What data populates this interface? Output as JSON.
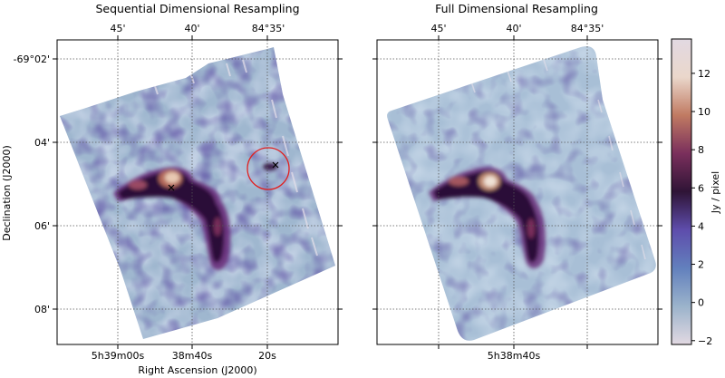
{
  "chart_data": [
    {
      "type": "heatmap",
      "title": "Sequential Dimensional Resampling",
      "xlabel": "Right Ascension (J2000)",
      "ylabel": "Declination (J2000)",
      "x_ticks_bottom": [
        "5h39m00s",
        "38m40s",
        "20s"
      ],
      "x_ticks_top": [
        "45'",
        "40'",
        "84°35'"
      ],
      "y_ticks": [
        "-69°02'",
        "04'",
        "06'",
        "08'"
      ],
      "grid": "dotted",
      "markers": [
        {
          "symbol": "x",
          "note": "cross on the bright emission peak"
        },
        {
          "symbol": "x",
          "note": "cross inside the circled source"
        }
      ],
      "annotation": {
        "shape": "circle",
        "color": "#e02020"
      },
      "features": [
        "rotated rectangular footprint",
        "striping artifacts along scan edge",
        "bright arc of emission near center"
      ]
    },
    {
      "type": "heatmap",
      "title": "Full Dimensional Resampling",
      "x_ticks_bottom": [
        "5h38m40s"
      ],
      "x_ticks_top": [
        "45'",
        "40'",
        "84°35'"
      ],
      "grid": "dotted",
      "features": [
        "rotated rectangular footprint with rounded corners",
        "smoother background",
        "bright arc of emission near center"
      ]
    }
  ],
  "colorbar": {
    "label": "Jy / pixel",
    "ticks": [
      -2,
      0,
      2,
      4,
      6,
      8,
      10,
      12
    ],
    "range": [
      -2.2,
      13.8
    ],
    "colormap": "twilight",
    "colors": [
      "#e2d9e2",
      "#9bb3cb",
      "#6280bd",
      "#5e4dac",
      "#2f1436",
      "#7a2f5c",
      "#c07a62",
      "#ead7cb",
      "#e2d9e2"
    ]
  }
}
